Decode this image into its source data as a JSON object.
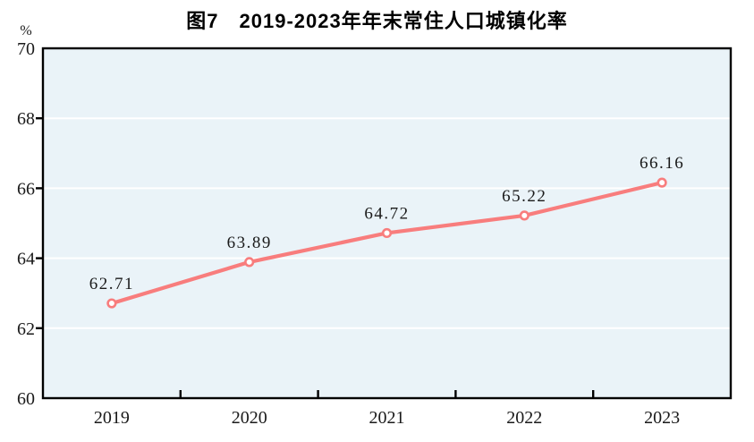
{
  "chart_data": {
    "type": "line",
    "title": "图7　2019-2023年年末常住人口城镇化率",
    "unit_label": "%",
    "categories": [
      "2019",
      "2020",
      "2021",
      "2022",
      "2023"
    ],
    "values": [
      62.71,
      63.89,
      64.72,
      65.22,
      66.16
    ],
    "point_labels": [
      "62.71",
      "63.89",
      "64.72",
      "65.22",
      "66.16"
    ],
    "xlabel": "",
    "ylabel": "%",
    "ylim": [
      60,
      70
    ],
    "yticks": [
      60,
      62,
      64,
      66,
      68,
      70
    ],
    "grid": "horizontal",
    "legend": "none",
    "colors": {
      "line": "#f87d7d",
      "marker_fill": "#ffffff",
      "plot_background": "#eaf3f8",
      "gridline": "#ffffff",
      "axis": "#000000",
      "text": "#1a1a1a"
    }
  }
}
